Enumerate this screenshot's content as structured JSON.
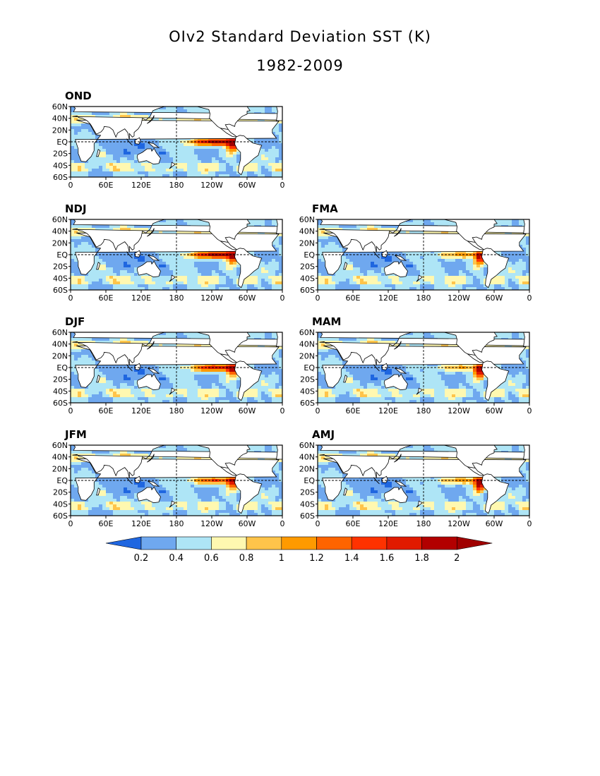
{
  "title": "OIv2 Standard Deviation SST (K)",
  "subtitle": "1982-2009",
  "lat_labels": [
    "60N",
    "40N",
    "20N",
    "EQ",
    "20S",
    "40S",
    "60S"
  ],
  "lon_labels": [
    "0",
    "60E",
    "120E",
    "180",
    "120W",
    "60W",
    "0"
  ],
  "panels": [
    {
      "id": "OND",
      "label": "OND",
      "enso_strength": 1.0,
      "peru_strength": 0.75
    },
    {
      "id": "NDJ",
      "label": "NDJ",
      "enso_strength": 1.0,
      "peru_strength": 0.6
    },
    {
      "id": "DJF",
      "label": "DJF",
      "enso_strength": 0.85,
      "peru_strength": 0.55
    },
    {
      "id": "JFM",
      "label": "JFM",
      "enso_strength": 0.65,
      "peru_strength": 0.55
    },
    {
      "id": "FMA",
      "label": "FMA",
      "enso_strength": 0.45,
      "peru_strength": 0.75
    },
    {
      "id": "MAM",
      "label": "MAM",
      "enso_strength": 0.4,
      "peru_strength": 0.9
    },
    {
      "id": "AMJ",
      "label": "AMJ",
      "enso_strength": 0.45,
      "peru_strength": 1.0
    }
  ],
  "colorbar": {
    "levels": [
      "0.2",
      "0.4",
      "0.6",
      "0.8",
      "1",
      "1.2",
      "1.4",
      "1.6",
      "1.8",
      "2"
    ],
    "colors": [
      "#1f66e0",
      "#6fa8ef",
      "#aee5f6",
      "#fff8b0",
      "#ffc44a",
      "#ff9a00",
      "#ff6400",
      "#ff3200",
      "#e11a00",
      "#b20000",
      "#a00000"
    ]
  },
  "colors": {
    "land": "#ffffff",
    "coast": "#000000",
    "frame": "#000000"
  }
}
